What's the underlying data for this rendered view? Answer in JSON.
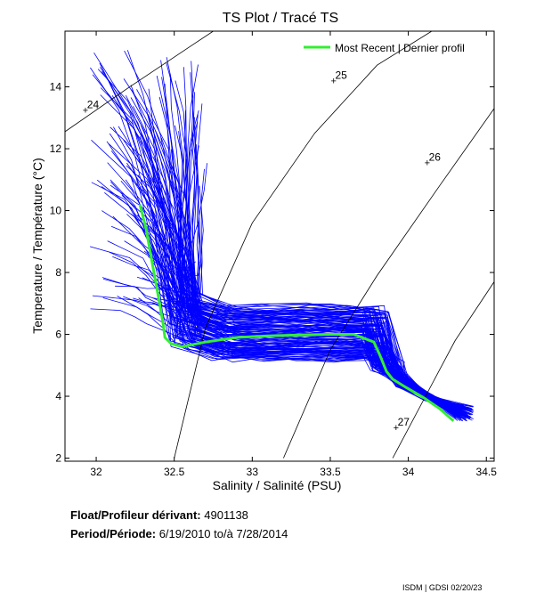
{
  "chart_data": {
    "type": "line",
    "title": "TS Plot / Tracé TS",
    "xlabel": "Salinity / Salinité (PSU)",
    "ylabel": "Temperature / Température (°C)",
    "xlim": [
      31.8,
      34.55
    ],
    "ylim": [
      1.9,
      15.8
    ],
    "x_ticks": [
      32,
      32.5,
      33,
      33.5,
      34,
      34.5
    ],
    "x_tick_labels": [
      "32",
      "32.5",
      "33",
      "33.5",
      "34",
      "34.5"
    ],
    "y_ticks": [
      2,
      4,
      6,
      8,
      10,
      12,
      14
    ],
    "y_tick_labels": [
      "2",
      "4",
      "6",
      "8",
      "10",
      "12",
      "14"
    ],
    "grid": false,
    "legend_position": "top-right",
    "colors": {
      "profiles": "#0000ff",
      "most_recent": "#33ee33",
      "isopycnals": "#000000"
    },
    "density_contours": [
      {
        "label": "24",
        "label_at": [
          31.93,
          13.25
        ],
        "points": [
          [
            31.8,
            12.55
          ],
          [
            32.2,
            13.95
          ],
          [
            32.6,
            15.3
          ],
          [
            32.75,
            15.8
          ]
        ]
      },
      {
        "label": "25",
        "label_at": [
          33.52,
          14.2
        ],
        "points": [
          [
            32.5,
            2.0
          ],
          [
            32.7,
            6.2
          ],
          [
            33.0,
            9.6
          ],
          [
            33.4,
            12.5
          ],
          [
            33.8,
            14.7
          ],
          [
            34.15,
            15.8
          ]
        ]
      },
      {
        "label": "26",
        "label_at": [
          34.12,
          11.55
        ],
        "points": [
          [
            33.2,
            2.0
          ],
          [
            33.5,
            5.5
          ],
          [
            33.8,
            7.9
          ],
          [
            34.2,
            10.8
          ],
          [
            34.55,
            13.3
          ]
        ]
      },
      {
        "label": "27",
        "label_at": [
          33.92,
          3.0
        ],
        "points": [
          [
            33.9,
            2.0
          ],
          [
            34.1,
            3.9
          ],
          [
            34.3,
            5.8
          ],
          [
            34.55,
            7.7
          ]
        ]
      }
    ],
    "series": [
      {
        "name": "Most Recent | Dernier profil",
        "x": [
          32.28,
          32.32,
          32.37,
          32.41,
          32.43,
          32.44,
          32.48,
          32.55,
          32.7,
          32.9,
          33.1,
          33.3,
          33.5,
          33.65,
          33.78,
          33.82,
          33.86,
          33.9,
          33.98,
          34.1,
          34.2,
          34.29
        ],
        "y": [
          10.2,
          9.4,
          8.0,
          6.9,
          6.3,
          5.9,
          5.7,
          5.6,
          5.75,
          5.9,
          5.95,
          5.98,
          6.0,
          6.0,
          5.75,
          5.3,
          4.8,
          4.55,
          4.3,
          3.95,
          3.6,
          3.2
        ]
      }
    ]
  },
  "meta": {
    "float_label": "Float/Profileur dérivant:",
    "float_id": "4901138",
    "period_label": "Period/Période:",
    "period_start": "6/19/2010",
    "period_sep": "to/à",
    "period_end": "7/28/2014"
  },
  "footer": {
    "credit": "ISDM | GDSI  02/20/23"
  }
}
